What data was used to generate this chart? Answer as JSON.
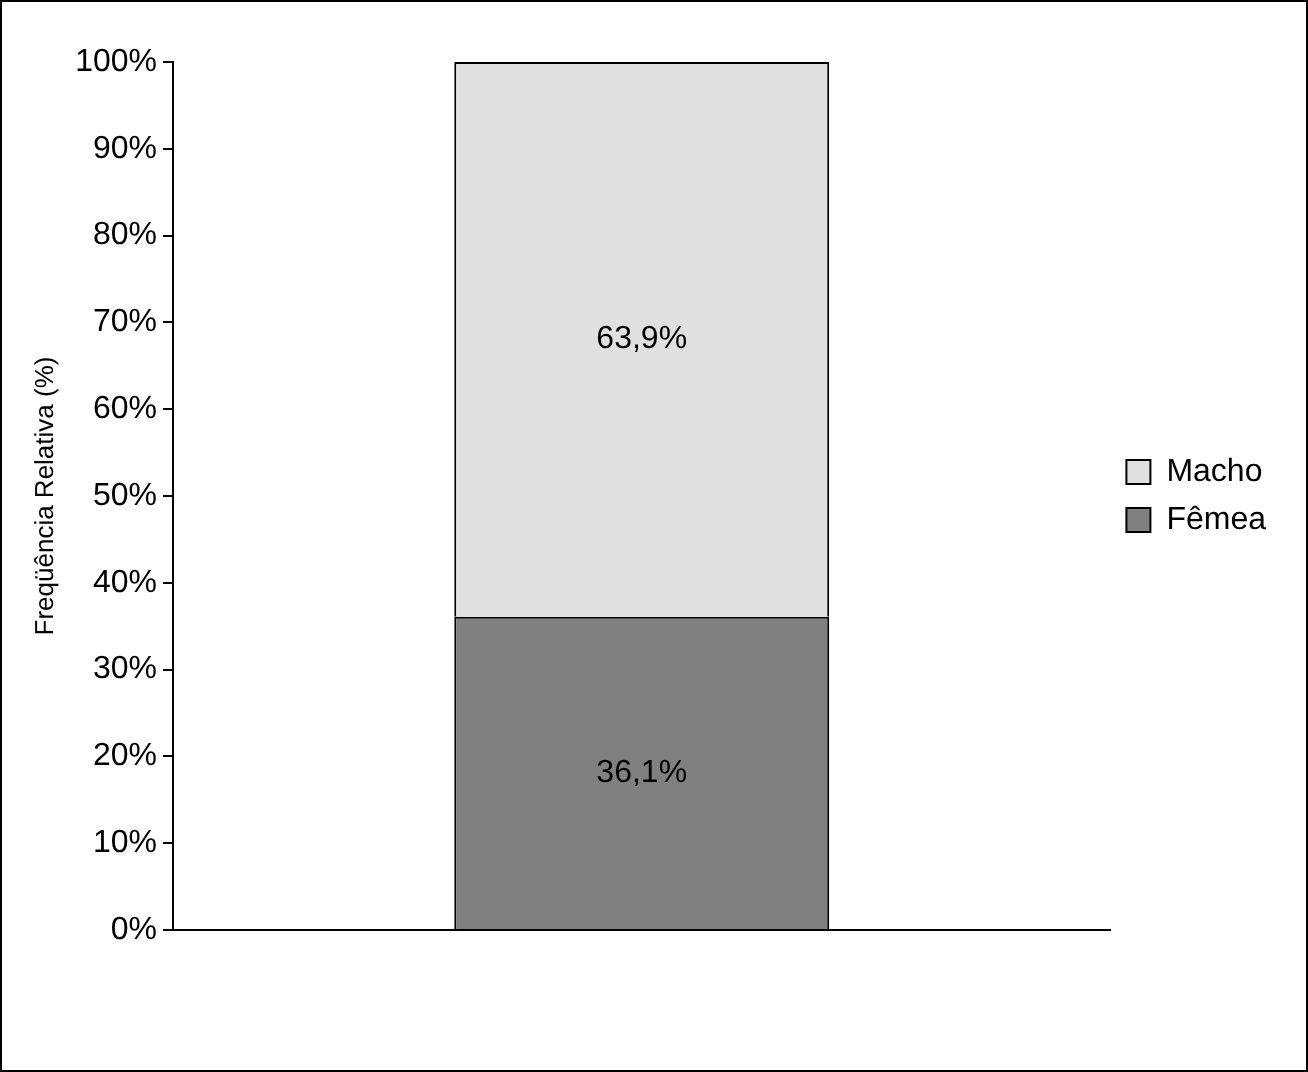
{
  "chart_data": {
    "type": "bar",
    "stacked": true,
    "ylabel": "Freqüência Relativa (%)",
    "categories": [
      null
    ],
    "series": [
      {
        "name": "Fêmea",
        "color": "#808080",
        "values": [
          36.1
        ],
        "value_labels": [
          "36,1%"
        ]
      },
      {
        "name": "Macho",
        "color": "#e0e0e0",
        "values": [
          63.9
        ],
        "value_labels": [
          "63,9%"
        ]
      }
    ],
    "ylim": [
      0,
      100
    ],
    "yticks": [
      {
        "value": 0,
        "label": "0%"
      },
      {
        "value": 10,
        "label": "10%"
      },
      {
        "value": 20,
        "label": "20%"
      },
      {
        "value": 30,
        "label": "30%"
      },
      {
        "value": 40,
        "label": "40%"
      },
      {
        "value": 50,
        "label": "50%"
      },
      {
        "value": 60,
        "label": "60%"
      },
      {
        "value": 70,
        "label": "70%"
      },
      {
        "value": 80,
        "label": "80%"
      },
      {
        "value": 90,
        "label": "90%"
      },
      {
        "value": 100,
        "label": "100%"
      }
    ],
    "tick_labels": "y",
    "grid": false,
    "legend": "right"
  }
}
